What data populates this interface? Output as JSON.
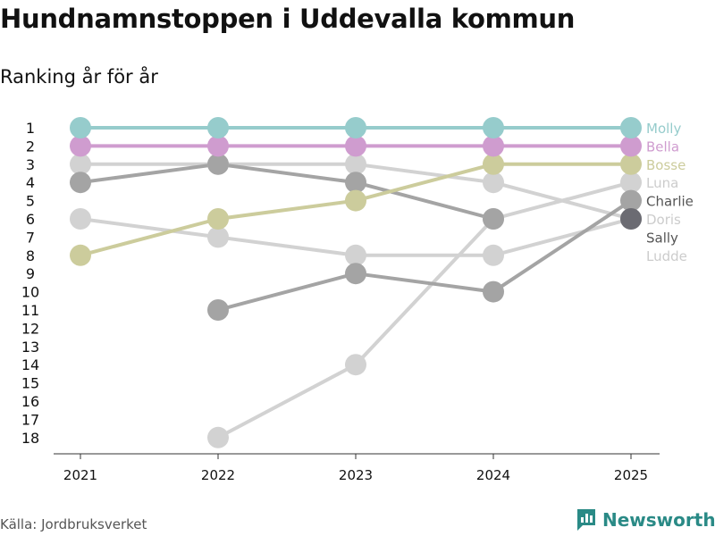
{
  "header": {
    "title": "Hundnamnstoppen i Uddevalla kommun",
    "subtitle": "Ranking år för år"
  },
  "footer": {
    "source": "Källa: Jordbruksverket",
    "brand": "Newsworthy",
    "brand_icon": "bar-chart-logo-icon"
  },
  "colors": {
    "molly": "#96cccc",
    "bella": "#cf9ccf",
    "bosse": "#cccc9c",
    "luna": "#d2d2d2",
    "charlie": "#a4a4a4",
    "doris": "#d2d2d2",
    "sally": "#a4a4a4",
    "ludde": "#d2d2d2",
    "label_dark": "#555555",
    "label_light": "#cccccc",
    "axis": "#333333",
    "brand": "#2a8a86"
  },
  "chart_data": {
    "type": "line",
    "title": "Hundnamnstoppen i Uddevalla kommun",
    "subtitle": "Ranking år för år",
    "xlabel": "",
    "ylabel": "",
    "categories": [
      "2021",
      "2022",
      "2023",
      "2024",
      "2025"
    ],
    "y_ticks": [
      1,
      2,
      3,
      4,
      5,
      6,
      7,
      8,
      9,
      10,
      11,
      12,
      13,
      14,
      15,
      16,
      17,
      18
    ],
    "ylim": [
      1,
      18
    ],
    "y_inverted": true,
    "grid": false,
    "series": [
      {
        "name": "Ludde",
        "color_key": "ludde",
        "values": [
          3,
          3,
          3,
          4,
          6
        ]
      },
      {
        "name": "Doris",
        "color_key": "doris",
        "values": [
          6,
          7,
          8,
          8,
          6
        ]
      },
      {
        "name": "Luna",
        "color_key": "luna",
        "values": [
          null,
          18,
          14,
          6,
          4
        ]
      },
      {
        "name": "Sally",
        "color_key": "sally",
        "values": [
          4,
          3,
          4,
          6,
          null
        ]
      },
      {
        "name": "Charlie",
        "color_key": "charlie",
        "values": [
          null,
          11,
          9,
          10,
          5
        ]
      },
      {
        "name": "Bosse",
        "color_key": "bosse",
        "values": [
          8,
          6,
          5,
          3,
          3
        ]
      },
      {
        "name": "Bella",
        "color_key": "bella",
        "values": [
          2,
          2,
          2,
          2,
          2
        ]
      },
      {
        "name": "Molly",
        "color_key": "molly",
        "values": [
          1,
          1,
          1,
          1,
          1
        ]
      }
    ],
    "end_markers": [
      {
        "rank": 6,
        "color": "#6b6b72"
      }
    ],
    "end_labels": [
      {
        "name": "Molly",
        "color_key": "molly"
      },
      {
        "name": "Bella",
        "color_key": "bella"
      },
      {
        "name": "Bosse",
        "color_key": "bosse"
      },
      {
        "name": "Luna",
        "color_key": "label_light"
      },
      {
        "name": "Charlie",
        "color_key": "label_dark"
      },
      {
        "name": "Doris",
        "color_key": "label_light"
      },
      {
        "name": "Sally",
        "color_key": "label_dark"
      },
      {
        "name": "Ludde",
        "color_key": "label_light"
      }
    ]
  }
}
